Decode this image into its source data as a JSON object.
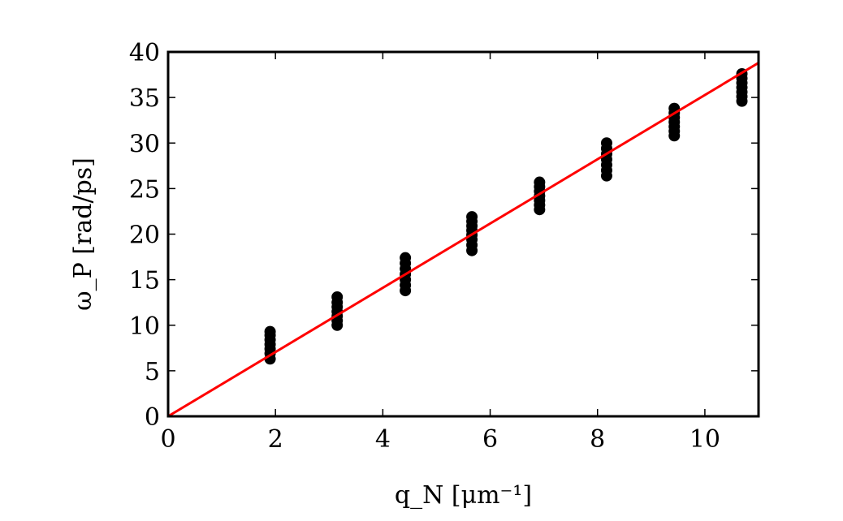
{
  "chart_data": {
    "type": "scatter",
    "xlabel": "q_N [μm⁻¹]",
    "ylabel": "ω_P [rad/ps]",
    "xlim": [
      0,
      11
    ],
    "ylim": [
      0,
      40
    ],
    "x_ticks": [
      "0",
      "2",
      "4",
      "6",
      "8",
      "10"
    ],
    "y_ticks": [
      "0",
      "5",
      "10",
      "15",
      "20",
      "25",
      "30",
      "35",
      "40"
    ],
    "grid": false,
    "points": {
      "color": "#000000",
      "x": [
        1.9,
        1.9,
        1.9,
        1.9,
        1.9,
        1.9,
        1.9,
        3.15,
        3.15,
        3.15,
        3.15,
        3.15,
        3.15,
        3.15,
        4.42,
        4.42,
        4.42,
        4.42,
        4.42,
        4.42,
        4.42,
        5.66,
        5.66,
        5.66,
        5.66,
        5.66,
        5.66,
        5.66,
        5.66,
        6.92,
        6.92,
        6.92,
        6.92,
        6.92,
        6.92,
        6.92,
        8.17,
        8.17,
        8.17,
        8.17,
        8.17,
        8.17,
        8.17,
        9.43,
        9.43,
        9.43,
        9.43,
        9.43,
        9.43,
        9.43,
        10.69,
        10.69,
        10.69,
        10.69,
        10.69,
        10.69,
        10.69
      ],
      "y": [
        6.3,
        6.9,
        7.4,
        7.9,
        8.4,
        8.9,
        9.3,
        10.0,
        10.5,
        11.0,
        11.5,
        12.0,
        12.5,
        13.1,
        13.8,
        14.4,
        15.0,
        15.6,
        16.2,
        16.8,
        17.4,
        18.2,
        18.8,
        19.4,
        19.9,
        20.4,
        20.9,
        21.4,
        21.9,
        22.7,
        23.2,
        23.7,
        24.2,
        24.7,
        25.2,
        25.7,
        26.4,
        27.0,
        27.6,
        28.2,
        28.8,
        29.4,
        30.0,
        30.8,
        31.3,
        31.8,
        32.3,
        32.8,
        33.3,
        33.8,
        34.6,
        35.1,
        35.6,
        36.1,
        36.6,
        37.1,
        37.6
      ]
    },
    "fit_line": {
      "color": "#ff0000",
      "x": [
        0,
        11
      ],
      "y": [
        0,
        38.8
      ]
    }
  }
}
